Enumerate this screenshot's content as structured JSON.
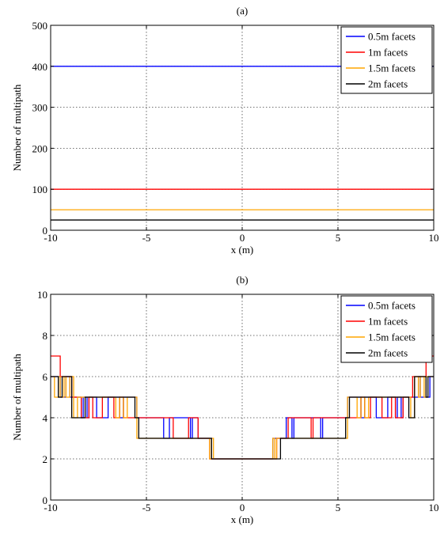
{
  "chart_data": [
    {
      "panel_label": "(a)",
      "type": "line",
      "xlabel": "x (m)",
      "ylabel": "Number of multipath",
      "xlim": [
        -10,
        10
      ],
      "ylim": [
        0,
        500
      ],
      "xticks": [
        -10,
        -5,
        0,
        5,
        10
      ],
      "yticks": [
        0,
        100,
        200,
        300,
        400,
        500
      ],
      "grid": true,
      "legend_position": "top-right",
      "series": [
        {
          "name": "0.5m facets",
          "color": "#0000ff",
          "x": [
            -10,
            10
          ],
          "y": [
            400,
            400
          ]
        },
        {
          "name": "1m facets",
          "color": "#ff0000",
          "x": [
            -10,
            10
          ],
          "y": [
            100,
            100
          ]
        },
        {
          "name": "1.5m facets",
          "color": "#ffa500",
          "x": [
            -10,
            10
          ],
          "y": [
            50,
            50
          ]
        },
        {
          "name": "2m facets",
          "color": "#000000",
          "x": [
            -10,
            10
          ],
          "y": [
            25,
            25
          ]
        }
      ]
    },
    {
      "panel_label": "(b)",
      "type": "line",
      "xlabel": "x (m)",
      "ylabel": "Number of multipath",
      "xlim": [
        -10,
        10
      ],
      "ylim": [
        0,
        10
      ],
      "xticks": [
        -10,
        -5,
        0,
        5,
        10
      ],
      "yticks": [
        0,
        2,
        4,
        6,
        8,
        10
      ],
      "grid": true,
      "legend_position": "top-right",
      "series": [
        {
          "name": "0.5m facets",
          "color": "#0000ff",
          "x": [
            -10,
            -9.8,
            -9.5,
            -9.3,
            -9.2,
            -9.0,
            -8.6,
            -8.4,
            -8.3,
            -8.1,
            -8.0,
            -7.8,
            -7.6,
            -7.2,
            -7.0,
            -6.6,
            -6.4,
            -6.2,
            -5.5,
            -4.2,
            -4.1,
            -3.8,
            -3.0,
            -2.7,
            -2.6,
            -2.3,
            -1.7,
            -1.6,
            -1.5,
            1.5,
            1.6,
            1.7,
            2.3,
            2.6,
            2.7,
            3.0,
            3.8,
            4.1,
            4.2,
            5.5,
            6.2,
            6.4,
            6.6,
            7.0,
            7.2,
            7.6,
            7.8,
            8.0,
            8.1,
            8.3,
            8.4,
            8.6,
            9.0,
            9.2,
            9.3,
            9.5,
            9.8,
            10
          ],
          "y": [
            6,
            6,
            5,
            5,
            6,
            5,
            5,
            4,
            5,
            4,
            5,
            5,
            4,
            4,
            5,
            5,
            4,
            5,
            4,
            4,
            3,
            4,
            4,
            3,
            4,
            3,
            3,
            2,
            2,
            2,
            3,
            3,
            4,
            3,
            4,
            4,
            4,
            3,
            4,
            5,
            4,
            5,
            5,
            4,
            4,
            5,
            5,
            4,
            5,
            4,
            5,
            5,
            5,
            6,
            5,
            5,
            6,
            6
          ]
        },
        {
          "name": "1m facets",
          "color": "#ff0000",
          "x": [
            -10,
            -9.6,
            -9.5,
            -9.1,
            -8.9,
            -8.6,
            -8.4,
            -8.2,
            -8.0,
            -7.8,
            -7.5,
            -7.3,
            -6.9,
            -6.7,
            -6.4,
            -6.2,
            -5.5,
            -3.7,
            -3.6,
            -2.8,
            -2.4,
            -2.3,
            -1.8,
            -1.7,
            -1.5,
            -1.4,
            1.4,
            1.5,
            1.7,
            1.8,
            2.3,
            2.4,
            2.8,
            3.6,
            3.7,
            5.5,
            6.2,
            6.4,
            6.7,
            6.9,
            7.3,
            7.5,
            7.8,
            8.0,
            8.2,
            8.4,
            8.6,
            8.9,
            9.1,
            9.5,
            9.6,
            10
          ],
          "y": [
            7,
            7,
            6,
            6,
            5,
            5,
            4,
            4,
            5,
            4,
            4,
            5,
            5,
            4,
            5,
            4,
            4,
            4,
            3,
            4,
            4,
            3,
            3,
            2,
            2,
            2,
            2,
            2,
            2,
            3,
            3,
            4,
            4,
            3,
            4,
            4,
            5,
            4,
            5,
            5,
            4,
            4,
            5,
            4,
            4,
            5,
            5,
            6,
            6,
            6,
            7,
            7
          ]
        },
        {
          "name": "1.5m facets",
          "color": "#ffa500",
          "x": [
            -10,
            -9.8,
            -9.6,
            -9.5,
            -9.3,
            -9.2,
            -9.0,
            -8.8,
            -8.6,
            -7.0,
            -6.6,
            -6.4,
            -6.2,
            -6.0,
            -5.5,
            -3.5,
            -1.8,
            -1.7,
            -1.6,
            -1.5,
            1.5,
            1.6,
            1.7,
            1.8,
            2.5,
            3.5,
            5.5,
            6.0,
            6.2,
            6.4,
            6.6,
            7.0,
            7.2,
            8.6,
            8.8,
            9.0,
            9.2,
            9.3,
            9.5,
            9.6,
            10
          ],
          "y": [
            6,
            5,
            6,
            5,
            6,
            5,
            6,
            4,
            5,
            5,
            4,
            5,
            4,
            5,
            3,
            3,
            3,
            2,
            3,
            2,
            2,
            3,
            2,
            3,
            3,
            3,
            5,
            4,
            5,
            4,
            5,
            5,
            5,
            5,
            4,
            6,
            5,
            6,
            5,
            6,
            6
          ]
        },
        {
          "name": "2m facets",
          "color": "#000000",
          "x": [
            -10,
            -9.7,
            -9.6,
            -9.4,
            -9.0,
            -8.9,
            -8.7,
            -8.2,
            -8.0,
            -7.5,
            -5.6,
            -5.4,
            -3.5,
            -2.0,
            -1.6,
            -1.5,
            -1.2,
            1.2,
            1.5,
            1.6,
            2.0,
            3.5,
            5.4,
            5.6,
            7.5,
            8.0,
            8.2,
            8.7,
            8.9,
            9.0,
            9.4,
            9.6,
            9.7,
            10
          ],
          "y": [
            6,
            6,
            5,
            6,
            6,
            4,
            4,
            5,
            5,
            5,
            4,
            3,
            3,
            3,
            2,
            2,
            2,
            2,
            2,
            2,
            3,
            3,
            4,
            5,
            5,
            5,
            5,
            4,
            4,
            6,
            6,
            5,
            6,
            6
          ]
        }
      ]
    }
  ]
}
